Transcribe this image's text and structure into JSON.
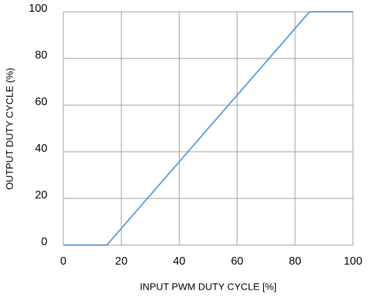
{
  "chart_data": {
    "type": "line",
    "x_label": "INPUT PWM DUTY CYCLE [%]",
    "y_label": "OUTPUT DUTY CYCLE (%)",
    "series": [
      {
        "name": "Output duty cycle",
        "color": "#5b9bd5",
        "x": [
          0,
          15,
          85,
          100
        ],
        "values": [
          0,
          0,
          100,
          100
        ]
      }
    ],
    "xlim": [
      0,
      100
    ],
    "xticks": [
      0,
      20,
      40,
      60,
      80,
      100
    ],
    "ylim": [
      0,
      100
    ],
    "yticks": [
      0,
      20,
      40,
      60,
      80,
      100
    ],
    "grid": true
  }
}
